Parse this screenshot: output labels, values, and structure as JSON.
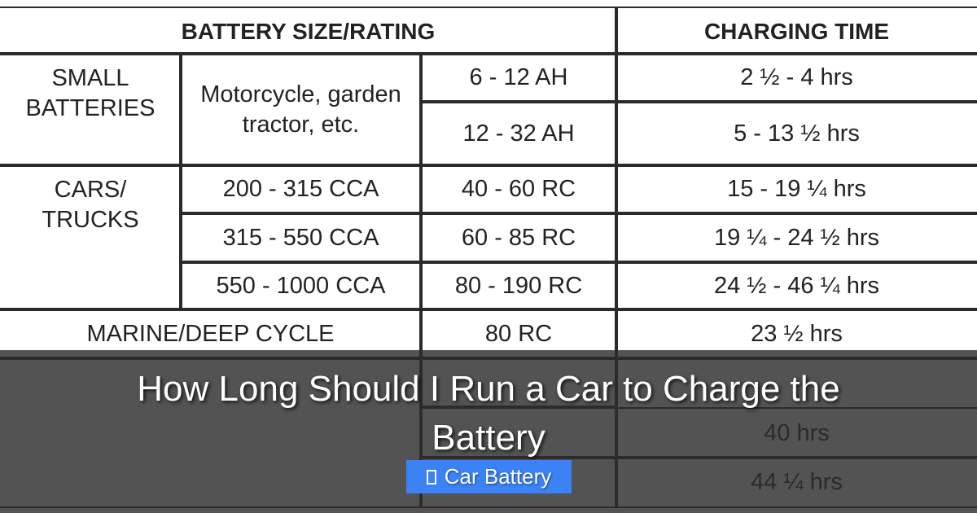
{
  "table": {
    "cells": [
      "BATTERY SIZE/RATING",
      "CHARGING TIME",
      "SMALL BATTERIES",
      "Motorcycle, garden tractor, etc.",
      "6 - 12 AH",
      "2 ½ - 4 hrs",
      "12 - 32 AH",
      "5 - 13 ½ hrs",
      "CARS/ TRUCKS",
      "200 - 315 CCA",
      "40 - 60 RC",
      "15 - 19 ¼ hrs",
      "315 - 550 CCA",
      "60 - 85 RC",
      "19 ¼ - 24 ½ hrs",
      "550 - 1000 CCA",
      "80 - 190 RC",
      "24 ½ - 46 ¼ hrs",
      "MARINE/DEEP CYCLE",
      "80 RC",
      "23 ½ hrs",
      "40 hrs",
      "44 ¼ hrs"
    ]
  },
  "overlay": {
    "title": "How Long Should I Run a Car to Charge the Battery",
    "tag": "Car Battery"
  }
}
